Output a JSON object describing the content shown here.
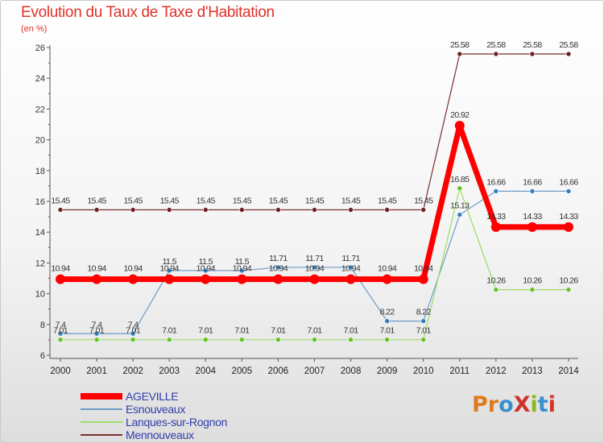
{
  "title": "Evolution du Taux de Taxe d'Habitation",
  "unit_label": "(en %)",
  "logo": {
    "text": "ProXiti",
    "colors": [
      "#e07a1e",
      "#e07a1e",
      "#3a8fd0",
      "#d0332a",
      "#8ab81e",
      "#3a8fd0",
      "#d0332a"
    ]
  },
  "chart_data": {
    "type": "line",
    "title": "Evolution du Taux de Taxe d'Habitation",
    "ylabel": "(en %)",
    "xlabel": "",
    "x": [
      "2000",
      "2001",
      "2002",
      "2003",
      "2004",
      "2005",
      "2006",
      "2007",
      "2008",
      "2009",
      "2010",
      "2011",
      "2012",
      "2013",
      "2014"
    ],
    "ylim": [
      6,
      26
    ],
    "yticks": [
      6,
      8,
      10,
      12,
      14,
      16,
      18,
      20,
      22,
      24,
      26
    ],
    "grid": false,
    "legend_position": "bottom-left",
    "series": [
      {
        "name": "AGEVILLE",
        "color": "#ff0000",
        "emphasis": true,
        "values": [
          10.94,
          10.94,
          10.94,
          10.94,
          10.94,
          10.94,
          10.94,
          10.94,
          10.94,
          10.94,
          10.94,
          20.92,
          14.33,
          14.33,
          14.33
        ],
        "labels": [
          "10.94",
          "10.94",
          "10.94",
          "10.94",
          "10.94",
          "10.94",
          "10.94",
          "10.94",
          "10.94",
          "10.94",
          "10.94",
          "20.92",
          "14.33",
          "14.33",
          "14.33"
        ]
      },
      {
        "name": "Esnouveaux",
        "color": "#6c9cc8",
        "marker": "#2f7fc0",
        "values": [
          7.4,
          7.4,
          7.4,
          11.5,
          11.5,
          11.5,
          11.71,
          11.71,
          11.71,
          8.22,
          8.22,
          15.13,
          16.66,
          16.66,
          16.66
        ],
        "labels": [
          "7.4",
          "7.4",
          "7.4",
          "11.5",
          "11.5",
          "11.5",
          "11.71",
          "11.71",
          "11.71",
          "8.22",
          "8.22",
          "15.13",
          "16.66",
          "16.66",
          "16.66"
        ]
      },
      {
        "name": "Lanques-sur-Rognon",
        "color": "#99dd66",
        "marker": "#66c022",
        "values": [
          7.01,
          7.01,
          7.01,
          7.01,
          7.01,
          7.01,
          7.01,
          7.01,
          7.01,
          7.01,
          7.01,
          16.85,
          10.26,
          10.26,
          10.26
        ],
        "labels": [
          "7.01",
          "7.01",
          "7.01",
          "7.01",
          "7.01",
          "7.01",
          "7.01",
          "7.01",
          "7.01",
          "7.01",
          "7.01",
          "16.85",
          "10.26",
          "10.26",
          "10.26"
        ]
      },
      {
        "name": "Mennouveaux",
        "color": "#7a2e2e",
        "marker": "#6e2020",
        "values": [
          15.45,
          15.45,
          15.45,
          15.45,
          15.45,
          15.45,
          15.45,
          15.45,
          15.45,
          15.45,
          15.45,
          25.58,
          25.58,
          25.58,
          25.58
        ],
        "labels": [
          "15.45",
          "15.45",
          "15.45",
          "15.45",
          "15.45",
          "15.45",
          "15.45",
          "15.45",
          "15.45",
          "15.45",
          "15.45",
          "25.58",
          "25.58",
          "25.58",
          "25.58"
        ]
      }
    ]
  }
}
